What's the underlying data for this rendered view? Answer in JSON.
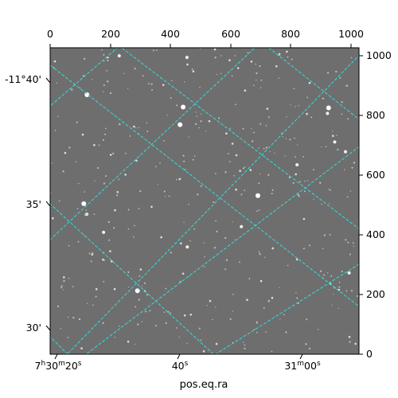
{
  "figure": {
    "xlabel": "pos.eq.ra",
    "top_ticks": [
      "0",
      "200",
      "400",
      "600",
      "800",
      "1000"
    ],
    "right_ticks": [
      "0",
      "200",
      "400",
      "600",
      "800",
      "1000"
    ],
    "left_ticks": [
      "-11°40'",
      "35'",
      "30'"
    ],
    "bottom_ticks": [
      {
        "main": "7",
        "sup1": "h",
        "mid": "30",
        "sup2": "m",
        "end": "20",
        "sup3": "s"
      },
      {
        "main": "40",
        "sup1": "s"
      },
      {
        "main": "31",
        "sup1": "m",
        "mid": "00",
        "sup2": "s"
      }
    ],
    "grid_color": "#33dddd",
    "image_color": "#6e6e6e"
  }
}
